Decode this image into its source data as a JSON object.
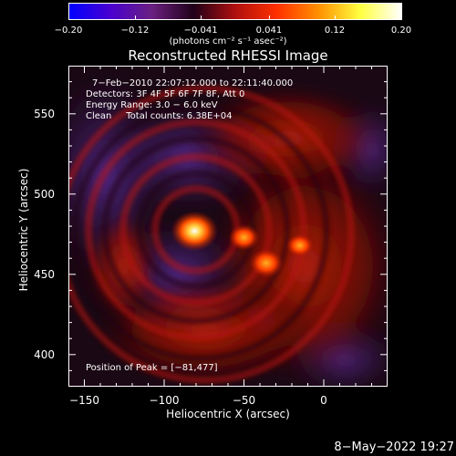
{
  "chart_data": {
    "type": "heatmap",
    "title": "Reconstructed RHESSI Image",
    "xlabel": "Heliocentric X (arcsec)",
    "ylabel": "Heliocentric Y (arcsec)",
    "xlim": [
      -160,
      40
    ],
    "ylim": [
      380,
      580
    ],
    "x_ticks": [
      -150,
      -100,
      -50,
      0
    ],
    "x_tick_labels": [
      "−150",
      "−100",
      "−50",
      "0"
    ],
    "y_ticks": [
      400,
      450,
      500,
      550
    ],
    "y_tick_labels": [
      "400",
      "450",
      "500",
      "550"
    ],
    "colorbar": {
      "range": [
        -0.2,
        0.2
      ],
      "ticks": [
        -0.2,
        -0.12,
        -0.041,
        0.041,
        0.12,
        0.2
      ],
      "tick_labels": [
        "−0.20",
        "−0.12",
        "−0.041",
        "0.041",
        "0.12",
        "0.20"
      ],
      "units": "(photons cm⁻² s⁻¹ asec⁻²)",
      "colormap": [
        "#0000ff",
        "#4a00d0",
        "#6a2080",
        "#200018",
        "#b01010",
        "#ff3000",
        "#ff9000",
        "#ffff40",
        "#ffffff"
      ]
    },
    "sources": [
      {
        "x": -81,
        "y": 477,
        "value": 0.2,
        "label": "peak"
      },
      {
        "x": -50,
        "y": 473,
        "value": 0.1
      },
      {
        "x": -36,
        "y": 457,
        "value": 0.12
      },
      {
        "x": -15,
        "y": 468,
        "value": 0.08
      }
    ],
    "annotations": [
      "7−Feb−2010 22:07:12.000 to 22:11:40.000",
      "Detectors: 3F 4F 5F 6F 7F 8F, Att 0",
      "Energy Range: 3.0 − 6.0 keV",
      "Clean     Total counts: 6.38E+04"
    ],
    "peak_text": "Position of Peak = [−81,477]",
    "grid": false
  },
  "footer": {
    "date": "8−May−2022 19:27"
  }
}
